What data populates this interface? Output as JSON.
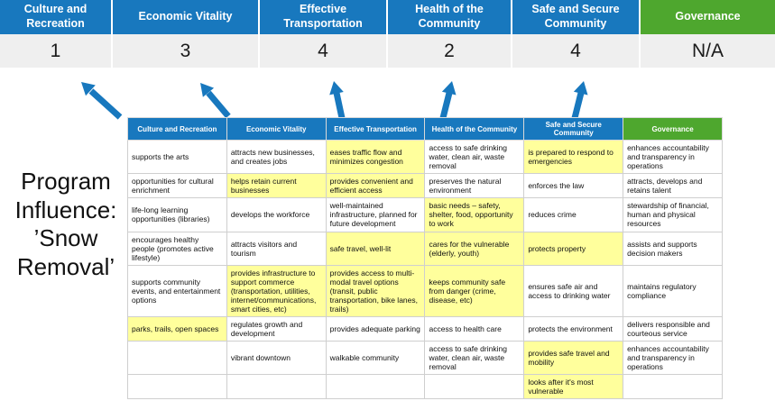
{
  "program_title": "Program Influence: ’Snow Removal’",
  "colors": {
    "header_blue": "#1878BE",
    "header_green": "#4EA72E",
    "highlight_yellow": "#FFFF9C",
    "score_band_gray": "#EFEFEF",
    "arrow_blue": "#1878BE"
  },
  "summary": {
    "columns": [
      {
        "label": "Culture and Recreation",
        "score": "1",
        "color": "blue"
      },
      {
        "label": "Economic Vitality",
        "score": "3",
        "color": "blue"
      },
      {
        "label": "Effective Transportation",
        "score": "4",
        "color": "blue"
      },
      {
        "label": "Health of the Community",
        "score": "2",
        "color": "blue"
      },
      {
        "label": "Safe and Secure Community",
        "score": "4",
        "color": "blue"
      },
      {
        "label": "Governance",
        "score": "N/A",
        "color": "green"
      }
    ]
  },
  "matrix": {
    "headers": [
      {
        "label": "Culture and Recreation",
        "color": "blue"
      },
      {
        "label": "Economic Vitality",
        "color": "blue"
      },
      {
        "label": "Effective Transportation",
        "color": "blue"
      },
      {
        "label": "Health of the Community",
        "color": "blue"
      },
      {
        "label": "Safe and Secure Community",
        "color": "blue"
      },
      {
        "label": "Governance",
        "color": "green"
      }
    ],
    "rows": [
      [
        {
          "text": "supports the arts",
          "highlight": false
        },
        {
          "text": "attracts new businesses, and creates jobs",
          "highlight": false
        },
        {
          "text": "eases traffic flow and minimizes congestion",
          "highlight": true
        },
        {
          "text": "access to safe drinking water, clean air, waste removal",
          "highlight": false
        },
        {
          "text": "is prepared to respond to emergencies",
          "highlight": true
        },
        {
          "text": "enhances accountability and transparency in operations",
          "highlight": false
        }
      ],
      [
        {
          "text": "opportunities for cultural enrichment",
          "highlight": false
        },
        {
          "text": "helps retain current businesses",
          "highlight": true
        },
        {
          "text": "provides convenient and efficient access",
          "highlight": true
        },
        {
          "text": "preserves the natural environment",
          "highlight": false
        },
        {
          "text": "enforces the law",
          "highlight": false
        },
        {
          "text": "attracts, develops and retains talent",
          "highlight": false
        }
      ],
      [
        {
          "text": "life-long learning opportunities (libraries)",
          "highlight": false
        },
        {
          "text": "develops the workforce",
          "highlight": false
        },
        {
          "text": "well-maintained infrastructure, planned for future development",
          "highlight": false
        },
        {
          "text": "basic needs – safety, shelter, food, opportunity to work",
          "highlight": true
        },
        {
          "text": "reduces crime",
          "highlight": false
        },
        {
          "text": "stewardship of financial, human and physical resources",
          "highlight": false
        }
      ],
      [
        {
          "text": "encourages healthy people (promotes active lifestyle)",
          "highlight": false
        },
        {
          "text": "attracts visitors and tourism",
          "highlight": false
        },
        {
          "text": "safe travel, well-lit",
          "highlight": true
        },
        {
          "text": "cares for the vulnerable (elderly, youth)",
          "highlight": true
        },
        {
          "text": "protects property",
          "highlight": true
        },
        {
          "text": "assists and supports decision makers",
          "highlight": false
        }
      ],
      [
        {
          "text": "supports community events, and entertainment options",
          "highlight": false
        },
        {
          "text": "provides infrastructure to support commerce (transportation, utilities, internet/communications, smart cities, etc)",
          "highlight": true
        },
        {
          "text": "provides access to multi-modal travel options (transit, public transportation, bike lanes, trails)",
          "highlight": true
        },
        {
          "text": "keeps community safe from danger (crime, disease, etc)",
          "highlight": true
        },
        {
          "text": "ensures safe air and access to drinking water",
          "highlight": false
        },
        {
          "text": "maintains regulatory compliance",
          "highlight": false
        }
      ],
      [
        {
          "text": "parks, trails, open spaces",
          "highlight": true
        },
        {
          "text": "regulates growth and development",
          "highlight": false
        },
        {
          "text": "provides adequate parking",
          "highlight": false
        },
        {
          "text": "access to health care",
          "highlight": false
        },
        {
          "text": "protects the environment",
          "highlight": false
        },
        {
          "text": "delivers responsible and courteous service",
          "highlight": false
        }
      ],
      [
        {
          "text": "",
          "highlight": false
        },
        {
          "text": "vibrant downtown",
          "highlight": false
        },
        {
          "text": "walkable community",
          "highlight": false
        },
        {
          "text": "access to safe drinking water, clean air, waste removal",
          "highlight": false
        },
        {
          "text": "provides safe travel and mobility",
          "highlight": true
        },
        {
          "text": "enhances accountability and transparency in operations",
          "highlight": false
        }
      ],
      [
        {
          "text": "",
          "highlight": false
        },
        {
          "text": "",
          "highlight": false
        },
        {
          "text": "",
          "highlight": false
        },
        {
          "text": "",
          "highlight": false
        },
        {
          "text": "looks after it's most vulnerable",
          "highlight": true
        },
        {
          "text": "",
          "highlight": false
        }
      ]
    ]
  }
}
